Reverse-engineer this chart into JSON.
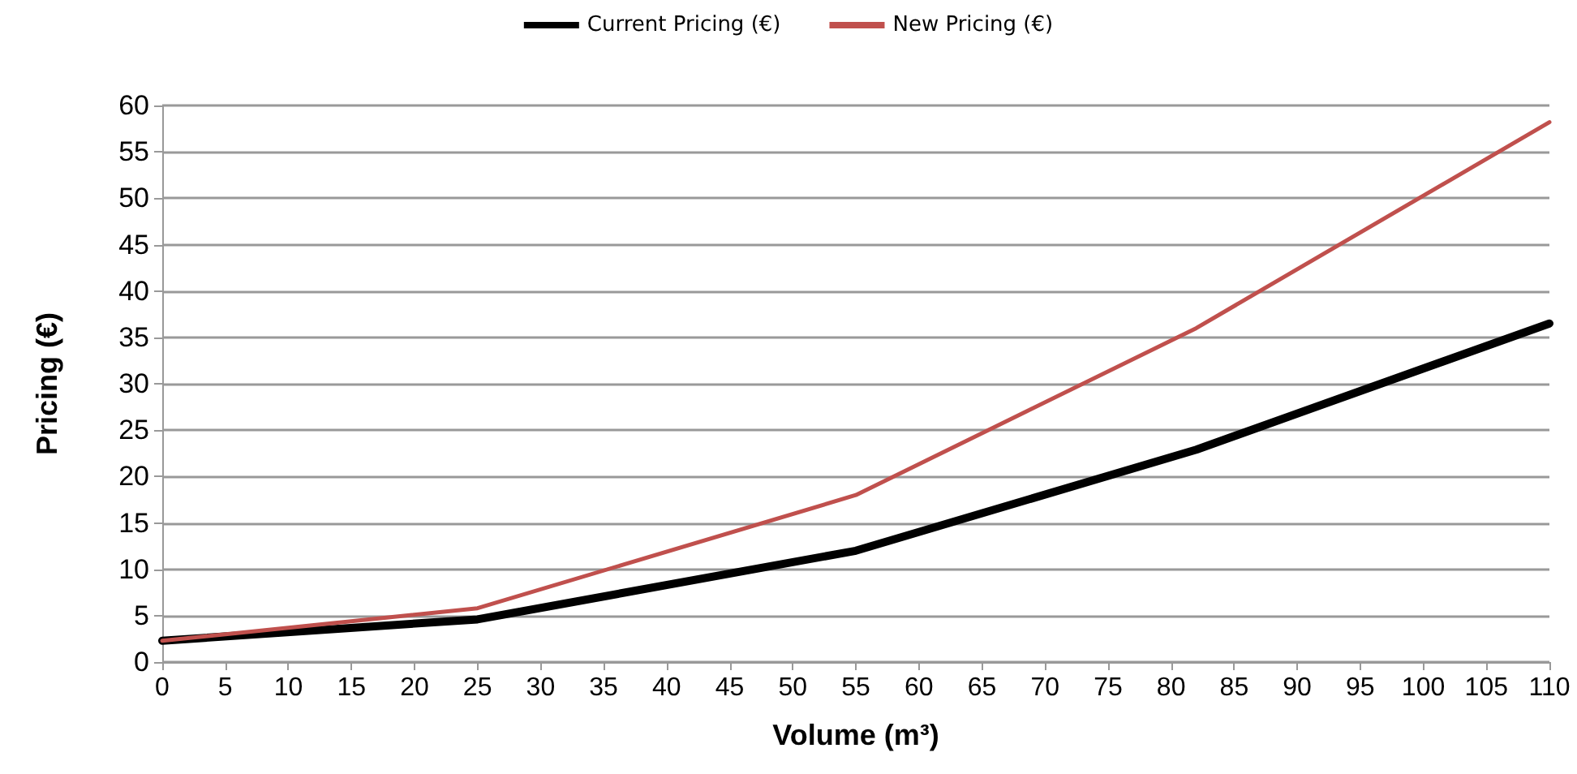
{
  "chart_data": {
    "type": "line",
    "xlabel": "Volume (m³)",
    "ylabel": "Pricing (€)",
    "x": [
      0,
      25,
      55,
      82,
      110
    ],
    "series": [
      {
        "name": "Current Pricing (€)",
        "color": "#000000",
        "values": [
          2.3,
          4.6,
          12,
          22.9,
          36.5
        ]
      },
      {
        "name": "New Pricing (€)",
        "color": "#c0504d",
        "values": [
          2.3,
          5.8,
          18,
          36,
          58.2
        ]
      }
    ],
    "xlim": [
      0,
      110
    ],
    "xticks": [
      0,
      5,
      10,
      15,
      20,
      25,
      30,
      35,
      40,
      45,
      50,
      55,
      60,
      65,
      70,
      75,
      80,
      85,
      90,
      95,
      100,
      105,
      110
    ],
    "ylim": [
      0,
      60
    ],
    "yticks": [
      0,
      5,
      10,
      15,
      20,
      25,
      30,
      35,
      40,
      45,
      50,
      55,
      60
    ],
    "grid": "y",
    "legend": "top",
    "marker": "none",
    "line_style": "solid"
  }
}
